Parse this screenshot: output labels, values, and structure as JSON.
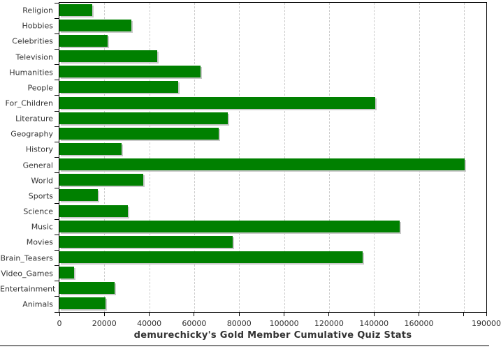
{
  "chart_data": {
    "type": "bar",
    "orientation": "horizontal",
    "title": "demurechicky's Gold Member Cumulative Quiz Stats",
    "categories": [
      "Religion",
      "Hobbies",
      "Celebrities",
      "Television",
      "Humanities",
      "People",
      "For_Children",
      "Literature",
      "Geography",
      "History",
      "General",
      "World",
      "Sports",
      "Science",
      "Music",
      "Movies",
      "Brain_Teasers",
      "Video_Games",
      "Entertainment",
      "Animals"
    ],
    "values": [
      14500,
      32000,
      21300,
      43400,
      62900,
      52900,
      140500,
      75000,
      70900,
      27800,
      180500,
      37400,
      17200,
      30600,
      151300,
      77100,
      134900,
      6400,
      24400,
      20600
    ],
    "xlabel": "",
    "ylabel": "",
    "xlim": [
      0,
      190000
    ],
    "x_ticks": [
      0,
      20000,
      40000,
      60000,
      80000,
      100000,
      120000,
      140000,
      160000,
      180000,
      190000
    ],
    "x_tick_labels": [
      "0",
      "20000",
      "40000",
      "60000",
      "80000",
      "100000",
      "120000",
      "140000",
      "160000",
      "",
      "190000"
    ],
    "grid": "vertical dashed gridlines every 20000",
    "legend": "none",
    "bar_color": "#008000",
    "bar_shadow_color": "#c9c9c9",
    "gridline_color": "#cccccc",
    "frame_color": "#000000",
    "text_color": "#333333",
    "background": "#ffffff"
  }
}
